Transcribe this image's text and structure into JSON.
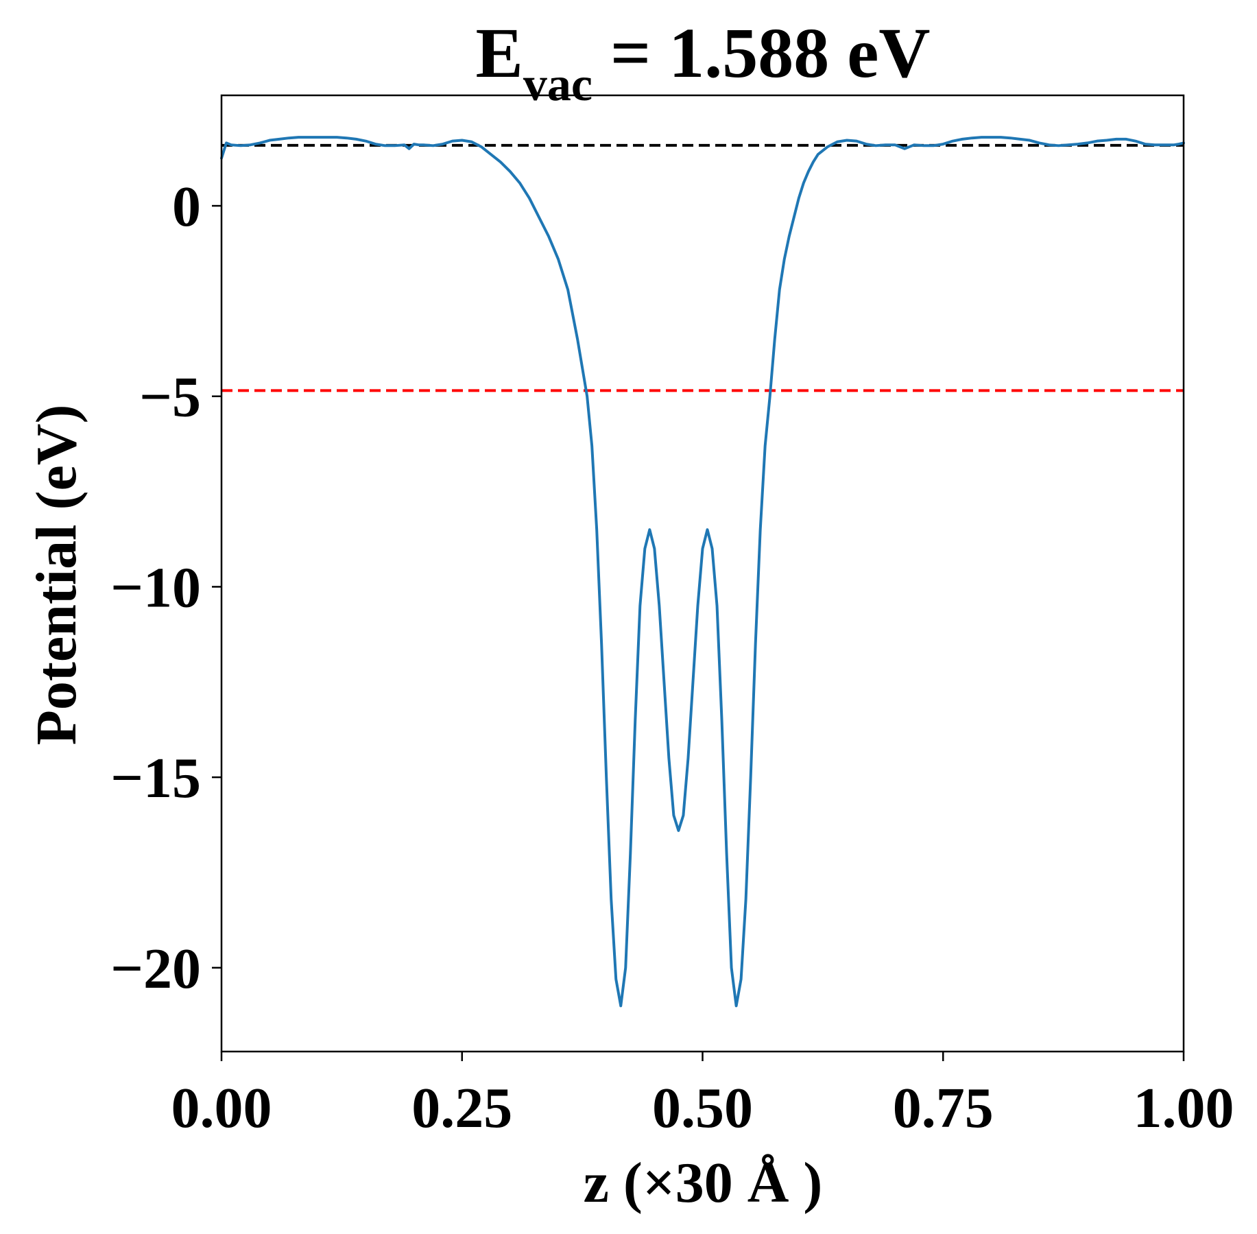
{
  "chart_data": {
    "type": "line",
    "title": {
      "symbol": "E",
      "subscript": "vac",
      "rest": " = 1.588 eV"
    },
    "xlabel": "z (×30 Å )",
    "ylabel": "Potential (eV)",
    "xlim": [
      0.0,
      1.0
    ],
    "ylim": [
      -22.2,
      2.9
    ],
    "xticks": [
      {
        "value": 0.0,
        "label": "0.00"
      },
      {
        "value": 0.25,
        "label": "0.25"
      },
      {
        "value": 0.5,
        "label": "0.50"
      },
      {
        "value": 0.75,
        "label": "0.75"
      },
      {
        "value": 1.0,
        "label": "1.00"
      }
    ],
    "yticks": [
      {
        "value": 0,
        "label": "0"
      },
      {
        "value": -5,
        "label": "−5"
      },
      {
        "value": -10,
        "label": "−10"
      },
      {
        "value": -15,
        "label": "−15"
      },
      {
        "value": -20,
        "label": "−20"
      }
    ],
    "grid": false,
    "reference_lines": [
      {
        "y": 1.588,
        "color": "#000000",
        "style": "dashed"
      },
      {
        "y": -4.85,
        "color": "#ff0000",
        "style": "dashed"
      }
    ],
    "series": [
      {
        "color": "#1f77b4",
        "x": [
          0.0,
          0.005,
          0.01,
          0.02,
          0.03,
          0.04,
          0.05,
          0.06,
          0.07,
          0.08,
          0.09,
          0.1,
          0.11,
          0.12,
          0.13,
          0.14,
          0.15,
          0.16,
          0.17,
          0.18,
          0.19,
          0.195,
          0.2,
          0.205,
          0.21,
          0.22,
          0.23,
          0.24,
          0.25,
          0.26,
          0.27,
          0.28,
          0.29,
          0.3,
          0.31,
          0.32,
          0.33,
          0.34,
          0.35,
          0.36,
          0.37,
          0.38,
          0.385,
          0.39,
          0.395,
          0.4,
          0.405,
          0.41,
          0.415,
          0.42,
          0.425,
          0.43,
          0.435,
          0.44,
          0.445,
          0.45,
          0.455,
          0.46,
          0.465,
          0.47,
          0.475,
          0.48,
          0.485,
          0.49,
          0.495,
          0.5,
          0.505,
          0.51,
          0.515,
          0.52,
          0.525,
          0.53,
          0.535,
          0.54,
          0.545,
          0.55,
          0.555,
          0.56,
          0.565,
          0.57,
          0.575,
          0.58,
          0.585,
          0.59,
          0.595,
          0.6,
          0.605,
          0.61,
          0.615,
          0.62,
          0.63,
          0.64,
          0.65,
          0.66,
          0.67,
          0.68,
          0.69,
          0.7,
          0.71,
          0.72,
          0.73,
          0.74,
          0.75,
          0.76,
          0.77,
          0.78,
          0.79,
          0.795,
          0.8,
          0.805,
          0.81,
          0.82,
          0.83,
          0.84,
          0.85,
          0.86,
          0.87,
          0.88,
          0.89,
          0.9,
          0.91,
          0.92,
          0.93,
          0.94,
          0.95,
          0.96,
          0.97,
          0.98,
          0.99,
          0.995,
          1.0
        ],
        "y": [
          1.25,
          1.65,
          1.6,
          1.58,
          1.6,
          1.65,
          1.72,
          1.75,
          1.78,
          1.8,
          1.8,
          1.8,
          1.8,
          1.8,
          1.78,
          1.75,
          1.7,
          1.62,
          1.58,
          1.58,
          1.6,
          1.5,
          1.62,
          1.6,
          1.6,
          1.58,
          1.62,
          1.7,
          1.72,
          1.68,
          1.55,
          1.35,
          1.15,
          0.9,
          0.6,
          0.2,
          -0.3,
          -0.8,
          -1.4,
          -2.2,
          -3.5,
          -5.0,
          -6.3,
          -8.5,
          -11.5,
          -15.0,
          -18.2,
          -20.3,
          -21.0,
          -20.0,
          -17.0,
          -13.5,
          -10.5,
          -9.0,
          -8.5,
          -9.0,
          -10.5,
          -12.5,
          -14.5,
          -16.0,
          -16.4,
          -16.0,
          -14.5,
          -12.5,
          -10.5,
          -9.0,
          -8.5,
          -9.0,
          -10.5,
          -13.5,
          -17.0,
          -20.0,
          -21.0,
          -20.3,
          -18.2,
          -15.0,
          -11.5,
          -8.5,
          -6.3,
          -5.0,
          -3.5,
          -2.2,
          -1.4,
          -0.8,
          -0.3,
          0.2,
          0.6,
          0.9,
          1.15,
          1.35,
          1.55,
          1.68,
          1.72,
          1.7,
          1.62,
          1.58,
          1.6,
          1.6,
          1.5,
          1.6,
          1.58,
          1.58,
          1.62,
          1.7,
          1.75,
          1.78,
          1.8,
          1.8,
          1.8,
          1.8,
          1.8,
          1.78,
          1.75,
          1.72,
          1.65,
          1.6,
          1.58,
          1.6,
          1.62,
          1.65,
          1.7,
          1.72,
          1.75,
          1.75,
          1.7,
          1.62,
          1.6,
          1.6,
          1.6,
          1.62,
          1.65
        ]
      }
    ]
  }
}
